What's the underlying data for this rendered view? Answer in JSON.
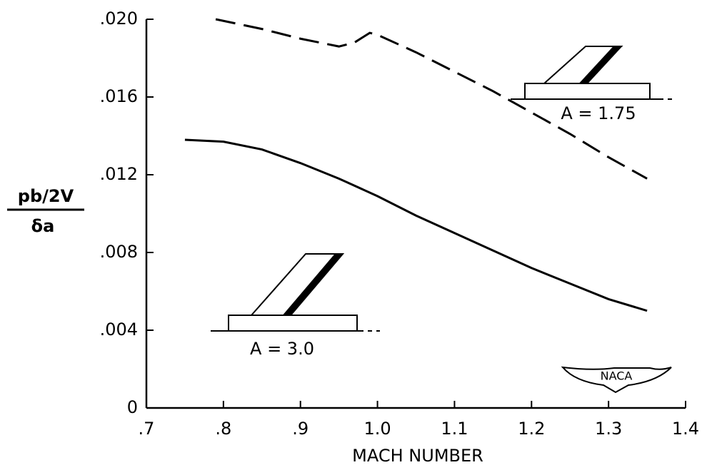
{
  "chart_data": {
    "type": "line",
    "x_label": "MACH NUMBER",
    "y_label": {
      "numerator": "pb/2V",
      "denominator": "δa"
    },
    "annotations": [
      "A = 1.75",
      "A = 3.0",
      "NACA"
    ],
    "xlim": [
      0.7,
      1.4
    ],
    "xticks": [
      {
        "value": 0.7,
        "label": ".7"
      },
      {
        "value": 0.8,
        "label": ".8"
      },
      {
        "value": 0.9,
        "label": ".9"
      },
      {
        "value": 1.0,
        "label": "1.0"
      },
      1.1,
      1.2,
      1.3,
      1.4
    ],
    "ylim": [
      0,
      0.02
    ],
    "yticks": [
      0,
      {
        "value": 0.004,
        "label": ".004"
      },
      {
        "value": 0.008,
        "label": ".008"
      },
      {
        "value": 0.012,
        "label": ".012"
      },
      {
        "value": 0.016,
        "label": ".016"
      },
      {
        "value": 0.02,
        "label": ".020"
      }
    ],
    "grid": false,
    "series": [
      {
        "name": "A = 1.75",
        "color": "#000000",
        "line_style": "dashed",
        "x": [
          0.79,
          0.85,
          0.9,
          0.95,
          0.97,
          0.99,
          1.0,
          1.05,
          1.1,
          1.15,
          1.2,
          1.25,
          1.3,
          1.35
        ],
        "values": [
          0.02,
          0.0195,
          0.019,
          0.0186,
          0.0188,
          0.0193,
          0.0192,
          0.0183,
          0.0173,
          0.0163,
          0.0152,
          0.0141,
          0.0129,
          0.0118
        ]
      },
      {
        "name": "A = 3.0",
        "color": "#000000",
        "line_style": "solid",
        "x": [
          0.75,
          0.8,
          0.85,
          0.9,
          0.95,
          1.0,
          1.05,
          1.1,
          1.15,
          1.2,
          1.25,
          1.3,
          1.35
        ],
        "values": [
          0.0138,
          0.0137,
          0.0133,
          0.0126,
          0.0118,
          0.0109,
          0.0099,
          0.009,
          0.0081,
          0.0072,
          0.0064,
          0.0056,
          0.005
        ]
      }
    ]
  }
}
